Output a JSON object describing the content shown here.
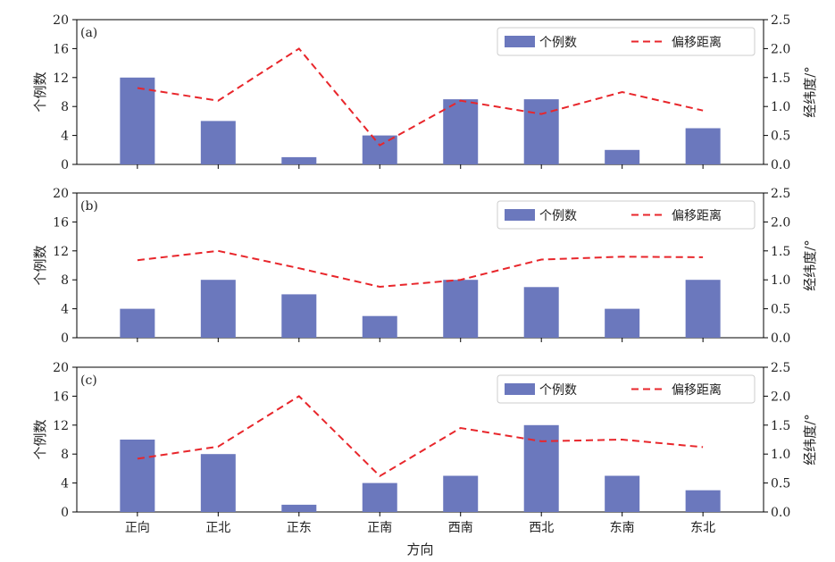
{
  "figure": {
    "xlabel": "方向",
    "left_ylabel": "个例数",
    "right_ylabel": "经纬度/°",
    "bar_color": "#6b78bd",
    "line_color": "#e8262b"
  },
  "chart_data": [
    {
      "type": "bar",
      "panel_label": "(a)",
      "categories": [
        "正向",
        "正北",
        "正东",
        "正南",
        "西南",
        "西北",
        "东南",
        "东北"
      ],
      "series": [
        {
          "name": "个例数",
          "type": "bar",
          "axis": "left",
          "values": [
            12,
            6,
            1,
            4,
            9,
            9,
            2,
            5
          ]
        },
        {
          "name": "偏移距离",
          "type": "line",
          "style": "dashed",
          "axis": "right",
          "values": [
            1.32,
            1.1,
            2.0,
            0.33,
            1.1,
            0.87,
            1.25,
            0.93
          ]
        }
      ],
      "ylim_left": [
        0,
        20
      ],
      "yticks_left": [
        "0",
        "4",
        "8",
        "12",
        "16",
        "20"
      ],
      "ylim_right": [
        0,
        2.5
      ],
      "yticks_right": [
        "0.0",
        "0.5",
        "1.0",
        "1.5",
        "2.0",
        "2.5"
      ],
      "legend": "top-right",
      "grid": false
    },
    {
      "type": "bar",
      "panel_label": "(b)",
      "categories": [
        "正向",
        "正北",
        "正东",
        "正南",
        "西南",
        "西北",
        "东南",
        "东北"
      ],
      "series": [
        {
          "name": "个例数",
          "type": "bar",
          "axis": "left",
          "values": [
            4,
            8,
            6,
            3,
            8,
            7,
            4,
            8
          ]
        },
        {
          "name": "偏移距离",
          "type": "line",
          "style": "dashed",
          "axis": "right",
          "values": [
            1.34,
            1.5,
            1.2,
            0.88,
            1.0,
            1.35,
            1.4,
            1.39
          ]
        }
      ],
      "ylim_left": [
        0,
        20
      ],
      "yticks_left": [
        "0",
        "4",
        "8",
        "12",
        "16",
        "20"
      ],
      "ylim_right": [
        0,
        2.5
      ],
      "yticks_right": [
        "0.0",
        "0.5",
        "1.0",
        "1.5",
        "2.0",
        "2.5"
      ],
      "legend": "top-right",
      "grid": false
    },
    {
      "type": "bar",
      "panel_label": "(c)",
      "categories": [
        "正向",
        "正北",
        "正东",
        "正南",
        "西南",
        "西北",
        "东南",
        "东北"
      ],
      "series": [
        {
          "name": "个例数",
          "type": "bar",
          "axis": "left",
          "values": [
            10,
            8,
            1,
            4,
            5,
            12,
            5,
            3
          ]
        },
        {
          "name": "偏移距离",
          "type": "line",
          "style": "dashed",
          "axis": "right",
          "values": [
            0.92,
            1.13,
            2.0,
            0.62,
            1.45,
            1.22,
            1.25,
            1.12
          ]
        }
      ],
      "ylim_left": [
        0,
        20
      ],
      "yticks_left": [
        "0",
        "4",
        "8",
        "12",
        "16",
        "20"
      ],
      "ylim_right": [
        0,
        2.5
      ],
      "yticks_right": [
        "0.0",
        "0.5",
        "1.0",
        "1.5",
        "2.0",
        "2.5"
      ],
      "legend": "top-right",
      "grid": false
    }
  ]
}
